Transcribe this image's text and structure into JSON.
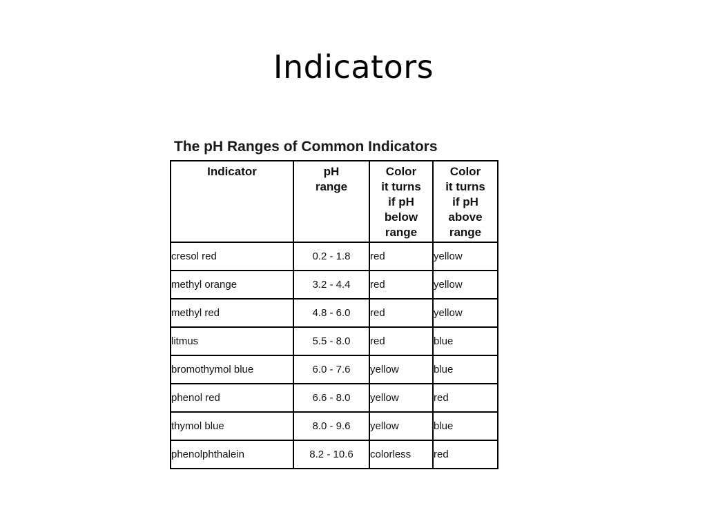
{
  "slide": {
    "title": "Indicators"
  },
  "table": {
    "caption": "The pH Ranges of Common Indicators",
    "headers": {
      "indicator": [
        "Indicator"
      ],
      "range": [
        "pH",
        "range"
      ],
      "below": [
        "Color",
        "it turns",
        "if pH",
        "below",
        "range"
      ],
      "above": [
        "Color",
        "it turns",
        "if pH",
        "above",
        "range"
      ]
    },
    "rows": [
      {
        "indicator": "cresol red",
        "range": "0.2 - 1.8",
        "below": "red",
        "above": "yellow"
      },
      {
        "indicator": "methyl orange",
        "range": "3.2 - 4.4",
        "below": "red",
        "above": "yellow"
      },
      {
        "indicator": "methyl red",
        "range": "4.8 - 6.0",
        "below": "red",
        "above": "yellow"
      },
      {
        "indicator": "litmus",
        "range": "5.5 - 8.0",
        "below": "red",
        "above": "blue"
      },
      {
        "indicator": "bromothymol blue",
        "range": "6.0 - 7.6",
        "below": "yellow",
        "above": "blue"
      },
      {
        "indicator": "phenol red",
        "range": "6.6 - 8.0",
        "below": "yellow",
        "above": "red"
      },
      {
        "indicator": "thymol blue",
        "range": "8.0 - 9.6",
        "below": "yellow",
        "above": "blue"
      },
      {
        "indicator": "phenolphthalein",
        "range": "8.2 - 10.6",
        "below": "colorless",
        "above": "red"
      }
    ]
  }
}
